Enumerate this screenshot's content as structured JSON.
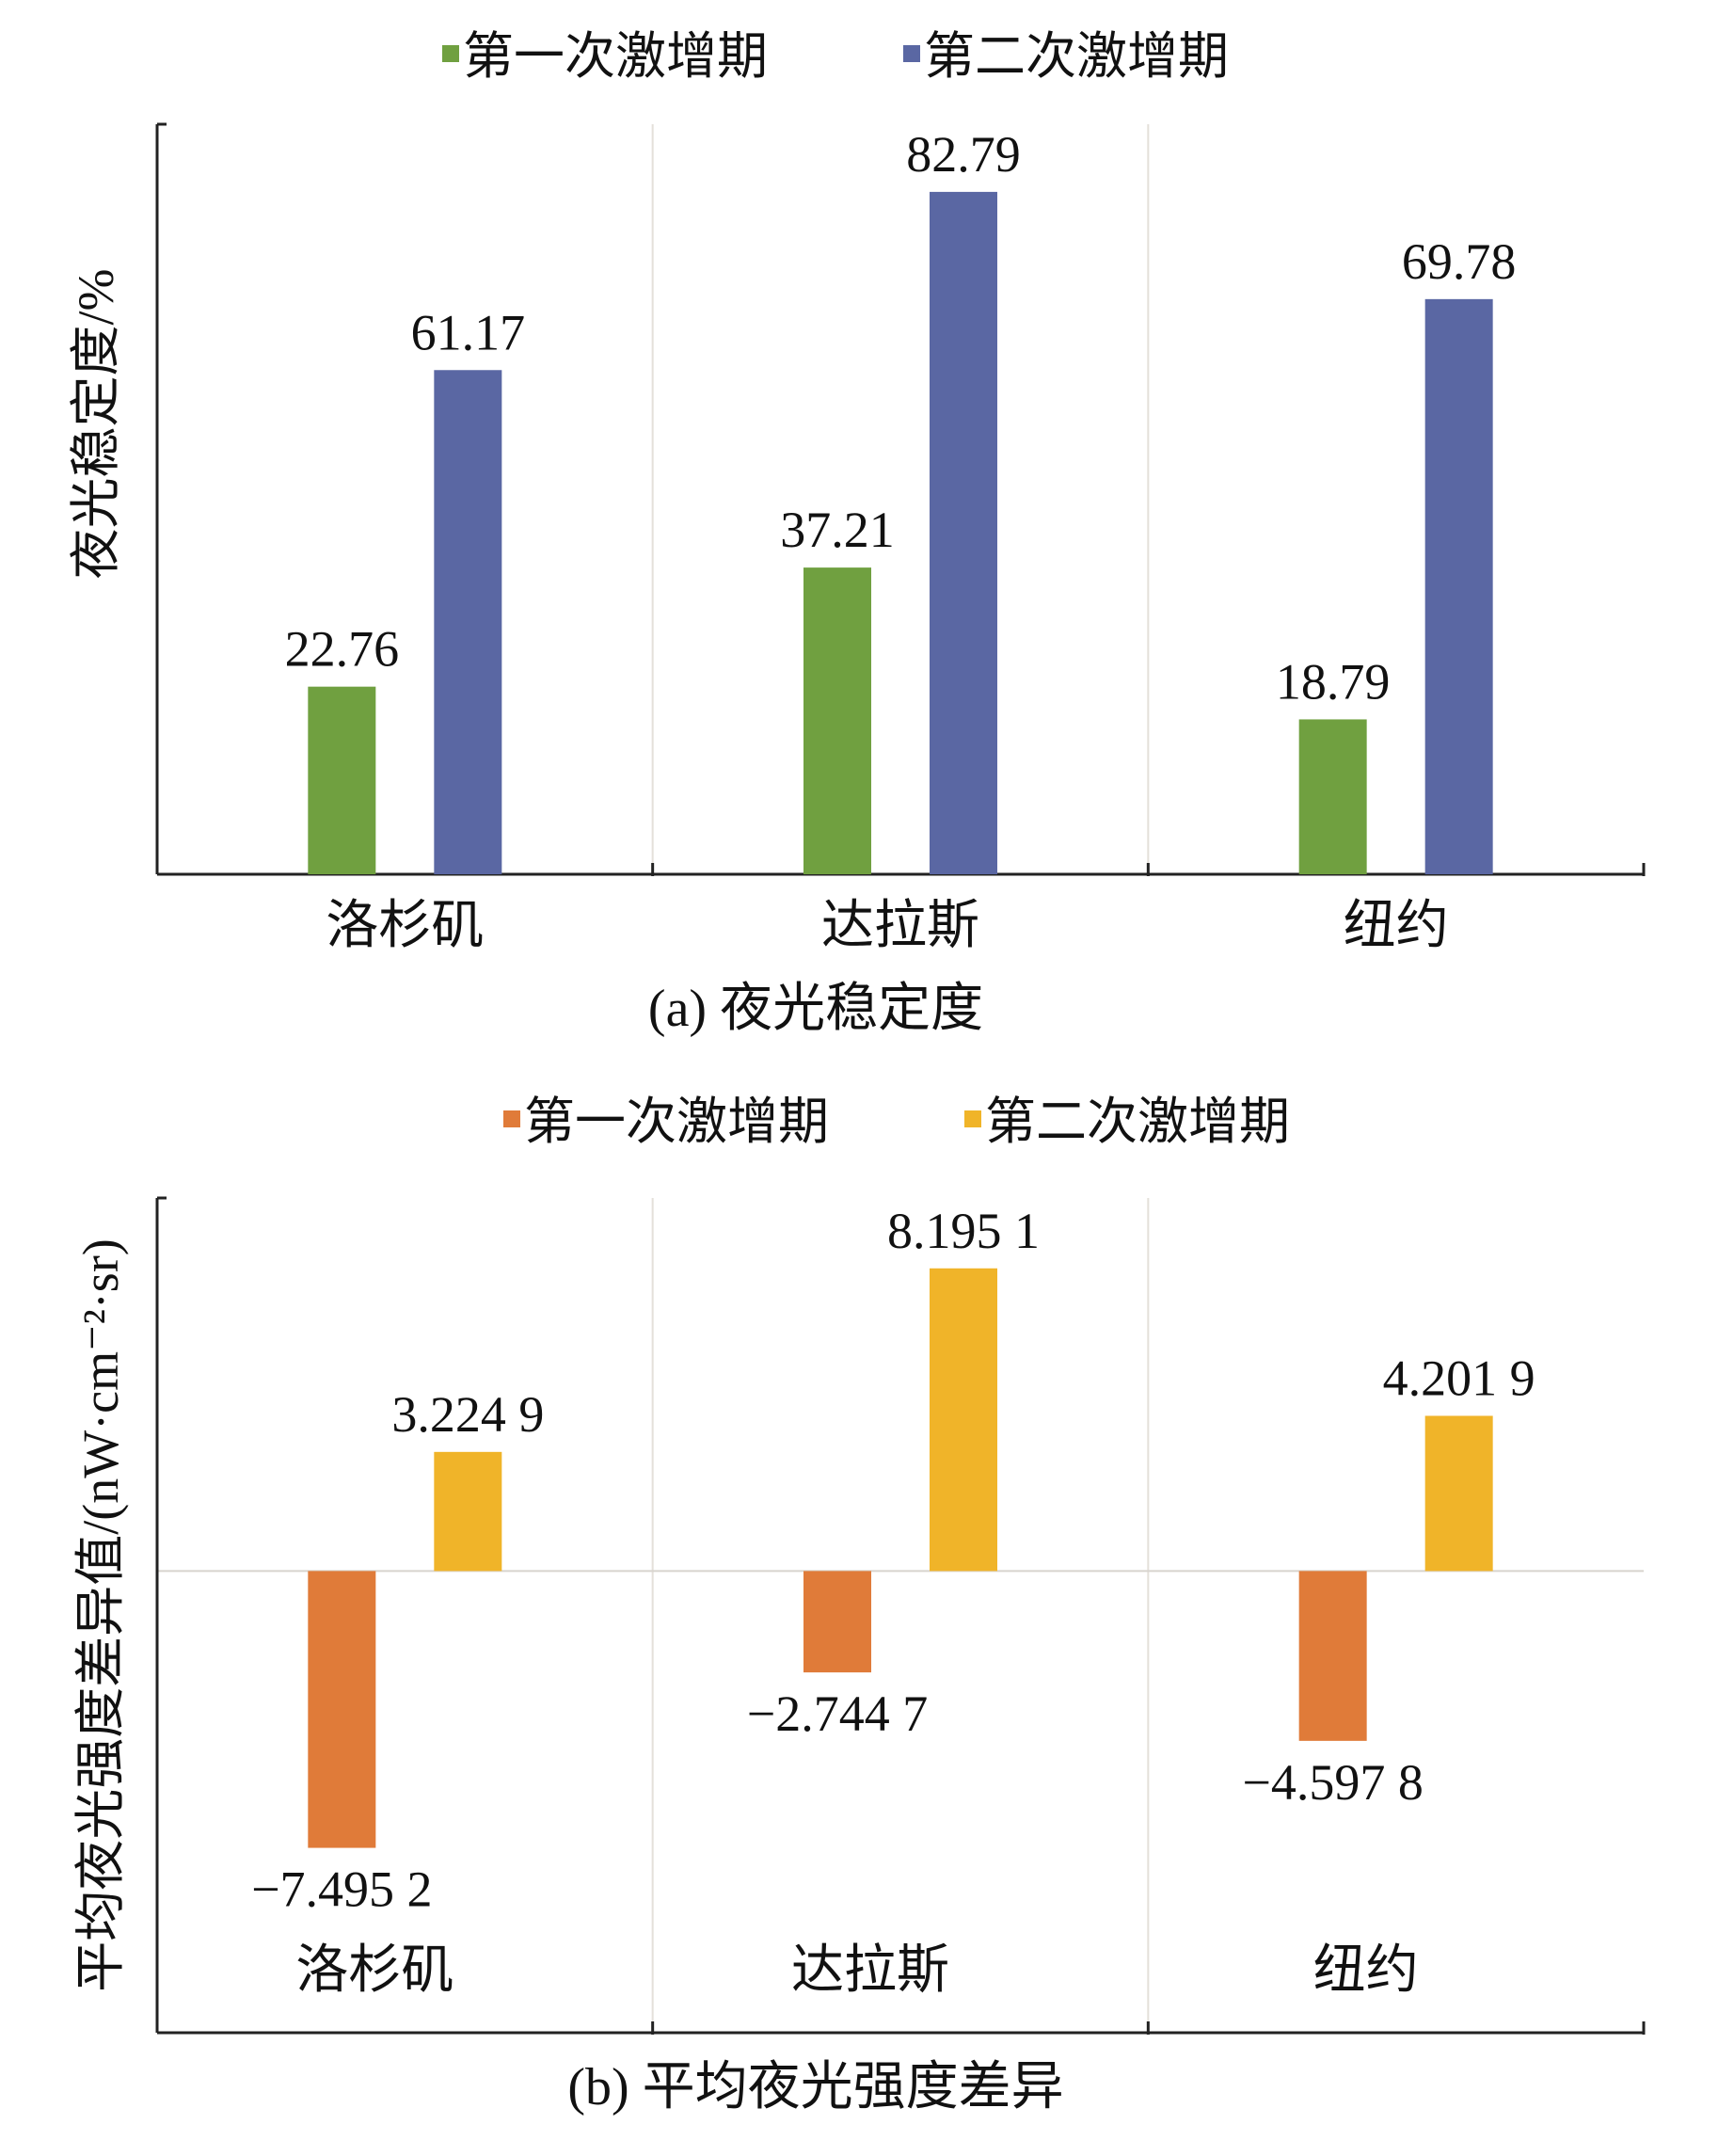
{
  "chart_data": [
    {
      "type": "bar",
      "title": "(a) 夜光稳定度",
      "ylabel": "夜光稳定度/%",
      "xlabel": "",
      "categories": [
        "洛杉矶",
        "达拉斯",
        "纽约"
      ],
      "series": [
        {
          "name": "第一次激增期",
          "values": [
            22.76,
            37.21,
            18.79
          ],
          "labels": [
            "22.76",
            "37.21",
            "18.79"
          ],
          "color": "#70a040"
        },
        {
          "name": "第二次激增期",
          "values": [
            61.17,
            82.79,
            69.78
          ],
          "labels": [
            "61.17",
            "82.79",
            "69.78"
          ],
          "color": "#5a67a3"
        }
      ],
      "ylim": [
        0,
        91
      ],
      "grid": "vertical category separators",
      "legend": "top"
    },
    {
      "type": "bar",
      "title": "(b) 平均夜光强度差异",
      "ylabel": "平均夜光强度差异值/(nW·cm⁻²·sr)",
      "xlabel": "",
      "categories": [
        "洛杉矶",
        "达拉斯",
        "纽约"
      ],
      "series": [
        {
          "name": "第一次激增期",
          "values": [
            -7.4952,
            -2.7447,
            -4.5978
          ],
          "labels": [
            "−7.495 2",
            "−2.744 7",
            "−4.597 8"
          ],
          "color": "#e07b39"
        },
        {
          "name": "第二次激增期",
          "values": [
            3.2249,
            8.1951,
            4.2019
          ],
          "labels": [
            "3.224 9",
            "8.195 1",
            "4.201 9"
          ],
          "color": "#f0b429"
        }
      ],
      "ylim": [
        -12.5,
        10.1
      ],
      "grid": "vertical category separators, zero line",
      "legend": "top"
    }
  ]
}
